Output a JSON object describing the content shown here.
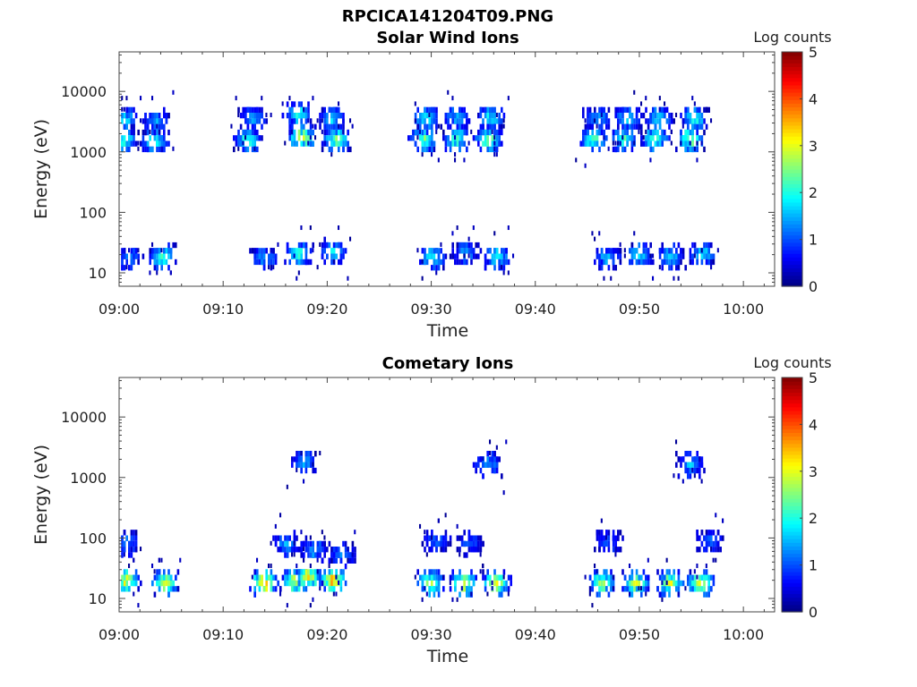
{
  "figure_title": "RPCICA141204T09.PNG",
  "chart_data": [
    {
      "type": "heatmap",
      "title": "Solar Wind Ions",
      "xlabel": "Time",
      "ylabel": "Energy (eV)",
      "y_scale": "log",
      "ylim": [
        6,
        45000
      ],
      "xlim": [
        "09:00",
        "10:03"
      ],
      "x_ticks": [
        "09:00",
        "09:10",
        "09:20",
        "09:30",
        "09:40",
        "09:50",
        "10:00"
      ],
      "y_ticks": [
        "10",
        "100",
        "1000",
        "10000"
      ],
      "colorbar": {
        "label": "Log counts",
        "range": [
          0,
          5
        ],
        "ticks": [
          "0",
          "1",
          "2",
          "3",
          "4",
          "5"
        ],
        "colormap": "jet"
      },
      "grid": false,
      "clusters": [
        {
          "t": 0.3,
          "e": 1800,
          "peak": 2.3
        },
        {
          "t": 0.3,
          "e": 3800,
          "peak": 1.9
        },
        {
          "t": 3.3,
          "e": 1600,
          "peak": 2.0
        },
        {
          "t": 3.5,
          "e": 3500,
          "peak": 1.3
        },
        {
          "t": 12.3,
          "e": 1700,
          "peak": 2.2
        },
        {
          "t": 12.8,
          "e": 4000,
          "peak": 1.4
        },
        {
          "t": 17.5,
          "e": 1900,
          "peak": 3.1
        },
        {
          "t": 17.1,
          "e": 4500,
          "peak": 2.0
        },
        {
          "t": 20.8,
          "e": 1800,
          "peak": 2.6
        },
        {
          "t": 20.4,
          "e": 4000,
          "peak": 1.6
        },
        {
          "t": 29.2,
          "e": 1800,
          "peak": 2.4
        },
        {
          "t": 29.4,
          "e": 4000,
          "peak": 1.9
        },
        {
          "t": 32.4,
          "e": 1800,
          "peak": 2.3
        },
        {
          "t": 32.4,
          "e": 4000,
          "peak": 1.5
        },
        {
          "t": 35.4,
          "e": 1800,
          "peak": 2.5
        },
        {
          "t": 35.6,
          "e": 4000,
          "peak": 1.9
        },
        {
          "t": 45.5,
          "e": 1800,
          "peak": 2.4
        },
        {
          "t": 45.9,
          "e": 4000,
          "peak": 1.6
        },
        {
          "t": 48.4,
          "e": 1800,
          "peak": 2.2
        },
        {
          "t": 48.8,
          "e": 4000,
          "peak": 1.7
        },
        {
          "t": 51.4,
          "e": 1800,
          "peak": 2.3
        },
        {
          "t": 51.8,
          "e": 4000,
          "peak": 1.8
        },
        {
          "t": 54.8,
          "e": 1800,
          "peak": 2.8
        },
        {
          "t": 55.2,
          "e": 4000,
          "peak": 2.0
        },
        {
          "t": 0.8,
          "e": 20,
          "peak": 1.2
        },
        {
          "t": 4.1,
          "e": 20,
          "peak": 2.2
        },
        {
          "t": 13.9,
          "e": 20,
          "peak": 1.3
        },
        {
          "t": 17.1,
          "e": 23,
          "peak": 2.2
        },
        {
          "t": 20.5,
          "e": 25,
          "peak": 1.8
        },
        {
          "t": 30.0,
          "e": 20,
          "peak": 1.9
        },
        {
          "t": 33.2,
          "e": 23,
          "peak": 1.3
        },
        {
          "t": 36.2,
          "e": 20,
          "peak": 1.9
        },
        {
          "t": 46.8,
          "e": 20,
          "peak": 1.5
        },
        {
          "t": 49.8,
          "e": 22,
          "peak": 1.9
        },
        {
          "t": 52.9,
          "e": 20,
          "peak": 1.6
        },
        {
          "t": 56.0,
          "e": 22,
          "peak": 1.8
        }
      ]
    },
    {
      "type": "heatmap",
      "title": "Cometary Ions",
      "xlabel": "Time",
      "ylabel": "Energy (eV)",
      "y_scale": "log",
      "ylim": [
        6,
        45000
      ],
      "xlim": [
        "09:00",
        "10:03"
      ],
      "x_ticks": [
        "09:00",
        "09:10",
        "09:20",
        "09:30",
        "09:40",
        "09:50",
        "10:00"
      ],
      "y_ticks": [
        "10",
        "100",
        "1000",
        "10000"
      ],
      "colorbar": {
        "label": "Log counts",
        "range": [
          0,
          5
        ],
        "ticks": [
          "0",
          "1",
          "2",
          "3",
          "4",
          "5"
        ],
        "colormap": "jet"
      },
      "grid": false,
      "clusters": [
        {
          "t": 0.6,
          "e": 22,
          "peak": 3.0
        },
        {
          "t": 4.3,
          "e": 20,
          "peak": 3.1
        },
        {
          "t": 13.9,
          "e": 20,
          "peak": 3.7
        },
        {
          "t": 16.9,
          "e": 22,
          "peak": 3.4
        },
        {
          "t": 18.1,
          "e": 25,
          "peak": 3.3
        },
        {
          "t": 20.4,
          "e": 22,
          "peak": 3.7
        },
        {
          "t": 29.8,
          "e": 20,
          "peak": 3.0
        },
        {
          "t": 33.0,
          "e": 20,
          "peak": 3.2
        },
        {
          "t": 36.1,
          "e": 20,
          "peak": 3.2
        },
        {
          "t": 46.3,
          "e": 20,
          "peak": 2.9
        },
        {
          "t": 49.6,
          "e": 20,
          "peak": 3.1
        },
        {
          "t": 52.8,
          "e": 20,
          "peak": 3.0
        },
        {
          "t": 55.8,
          "e": 20,
          "peak": 3.2
        },
        {
          "t": 0.5,
          "e": 90,
          "peak": 1.2
        },
        {
          "t": 16.0,
          "e": 90,
          "peak": 1.4
        },
        {
          "t": 18.6,
          "e": 70,
          "peak": 1.3
        },
        {
          "t": 21.3,
          "e": 60,
          "peak": 1.1
        },
        {
          "t": 30.4,
          "e": 100,
          "peak": 1.0
        },
        {
          "t": 33.6,
          "e": 90,
          "peak": 1.0
        },
        {
          "t": 46.9,
          "e": 100,
          "peak": 1.0
        },
        {
          "t": 56.6,
          "e": 100,
          "peak": 1.1
        },
        {
          "t": 17.7,
          "e": 2000,
          "peak": 1.4
        },
        {
          "t": 35.4,
          "e": 1800,
          "peak": 1.3
        },
        {
          "t": 54.8,
          "e": 1800,
          "peak": 1.5
        }
      ]
    }
  ]
}
